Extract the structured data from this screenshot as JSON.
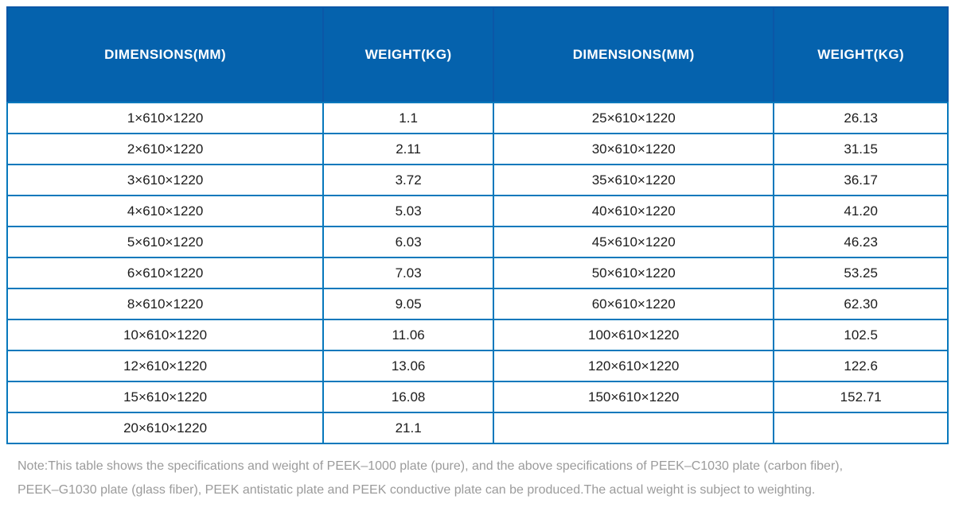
{
  "colors": {
    "header_bg": "#0562ad",
    "header_border": "#0b57a7",
    "grid_border": "#0778bc",
    "body_text": "#1c1c1c",
    "note_color": "#9b9b9b"
  },
  "table": {
    "headers": [
      "DIMENSIONS(MM)",
      "WEIGHT(KG)",
      "DIMENSIONS(MM)",
      "WEIGHT(KG)"
    ],
    "rows": [
      [
        "1×610×1220",
        "1.1",
        "25×610×1220",
        "26.13"
      ],
      [
        "2×610×1220",
        "2.11",
        "30×610×1220",
        "31.15"
      ],
      [
        "3×610×1220",
        "3.72",
        "35×610×1220",
        "36.17"
      ],
      [
        "4×610×1220",
        "5.03",
        "40×610×1220",
        "41.20"
      ],
      [
        "5×610×1220",
        "6.03",
        "45×610×1220",
        "46.23"
      ],
      [
        "6×610×1220",
        "7.03",
        "50×610×1220",
        "53.25"
      ],
      [
        "8×610×1220",
        "9.05",
        "60×610×1220",
        "62.30"
      ],
      [
        "10×610×1220",
        "11.06",
        "100×610×1220",
        "102.5"
      ],
      [
        "12×610×1220",
        "13.06",
        "120×610×1220",
        "122.6"
      ],
      [
        "15×610×1220",
        "16.08",
        "150×610×1220",
        "152.71"
      ],
      [
        "20×610×1220",
        "21.1",
        "",
        ""
      ]
    ]
  },
  "note": {
    "lines": [
      "Note:This table shows the specifications and weight of PEEK–1000 plate (pure), and the above specifications of PEEK–C1030 plate (carbon fiber),",
      "PEEK–G1030 plate (glass fiber), PEEK antistatic plate and PEEK conductive plate can be produced.The actual weight is subject to weighting."
    ]
  }
}
